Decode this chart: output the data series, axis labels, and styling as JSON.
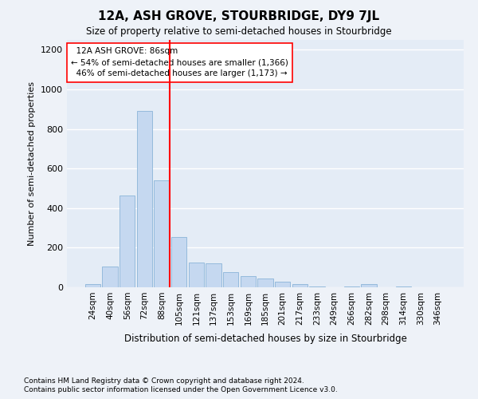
{
  "title": "12A, ASH GROVE, STOURBRIDGE, DY9 7JL",
  "subtitle": "Size of property relative to semi-detached houses in Stourbridge",
  "xlabel": "Distribution of semi-detached houses by size in Stourbridge",
  "ylabel": "Number of semi-detached properties",
  "categories": [
    "24sqm",
    "40sqm",
    "56sqm",
    "72sqm",
    "88sqm",
    "105sqm",
    "121sqm",
    "137sqm",
    "153sqm",
    "169sqm",
    "185sqm",
    "201sqm",
    "217sqm",
    "233sqm",
    "249sqm",
    "266sqm",
    "282sqm",
    "298sqm",
    "314sqm",
    "330sqm",
    "346sqm"
  ],
  "values": [
    15,
    105,
    465,
    890,
    540,
    255,
    125,
    120,
    75,
    55,
    45,
    30,
    15,
    5,
    0,
    5,
    15,
    0,
    5,
    0,
    0
  ],
  "bar_color": "#c5d8f0",
  "bar_edge_color": "#8ab4d8",
  "property_label": "12A ASH GROVE: 86sqm",
  "pct_smaller": 54,
  "n_smaller": 1366,
  "pct_larger": 46,
  "n_larger": 1173,
  "redline_bin_index": 4,
  "ylim": [
    0,
    1250
  ],
  "yticks": [
    0,
    200,
    400,
    600,
    800,
    1000,
    1200
  ],
  "footnote1": "Contains HM Land Registry data © Crown copyright and database right 2024.",
  "footnote2": "Contains public sector information licensed under the Open Government Licence v3.0.",
  "bg_color": "#eef2f8",
  "plot_bg_color": "#e4ecf6"
}
